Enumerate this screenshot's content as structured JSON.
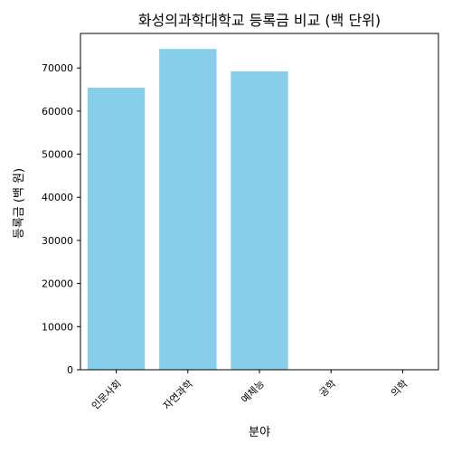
{
  "chart_data": {
    "type": "bar",
    "title": "화성의과학대학교 등록금 비교 (백 단위)",
    "xlabel": "분야",
    "ylabel": "등록금 (백 원)",
    "categories": [
      "인문사회",
      "자연과학",
      "예체능",
      "공학",
      "의학"
    ],
    "values": [
      65400,
      74400,
      69200,
      0,
      0
    ],
    "ylim": [
      0,
      78000
    ],
    "yticks": [
      0,
      10000,
      20000,
      30000,
      40000,
      50000,
      60000,
      70000
    ],
    "bar_color": "#87CEEB",
    "grid": false,
    "legend": "none"
  }
}
